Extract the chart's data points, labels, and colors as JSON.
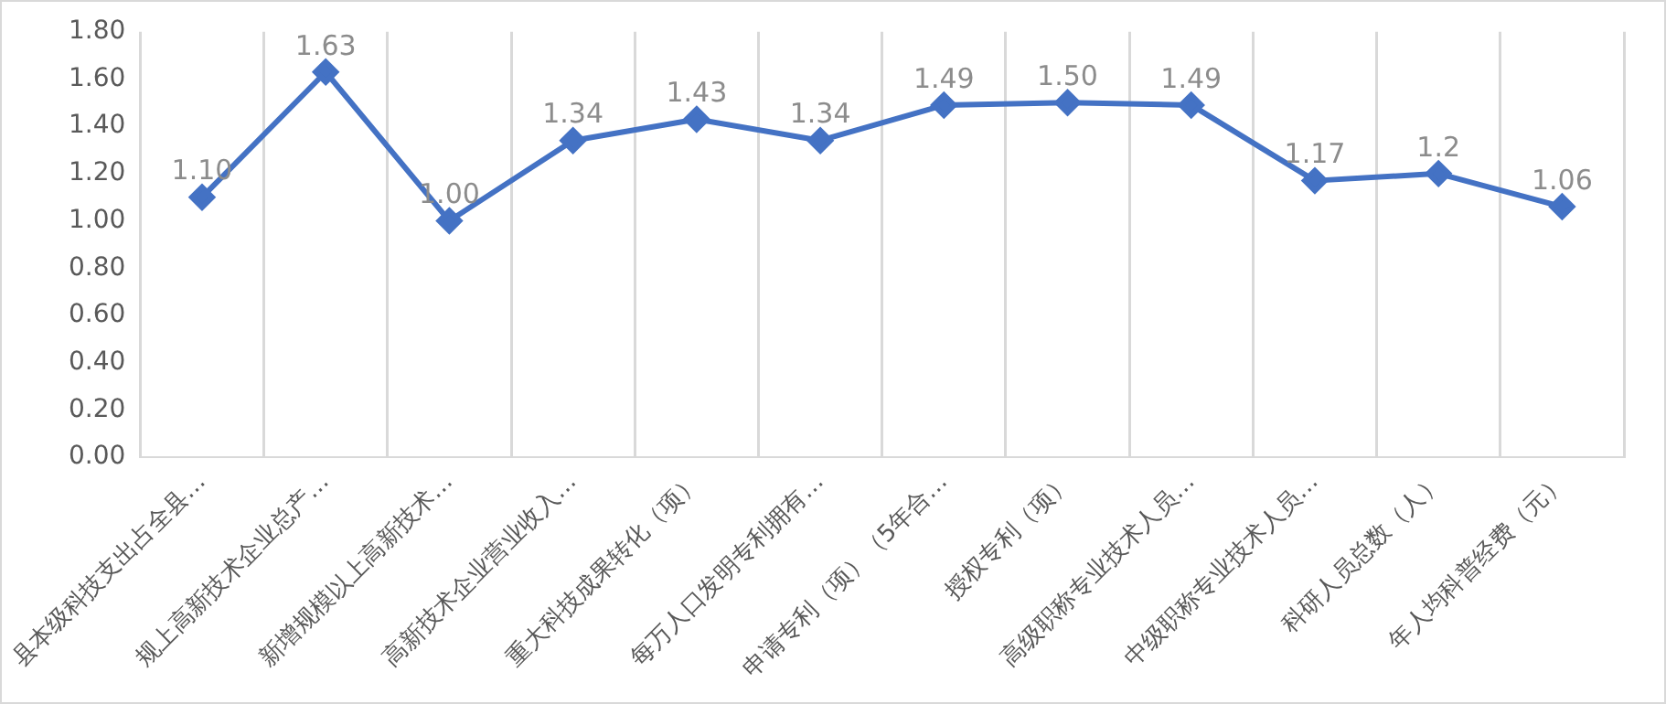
{
  "chart_data": {
    "type": "line",
    "categories": [
      "县本级科技支出占全县…",
      "规上高新技术企业总产…",
      "新增规模以上高新技术…",
      "高新技术企业营业收入…",
      "重大科技成果转化（项）",
      "每万人口发明专利拥有…",
      "申请专利（项）（5年合…",
      "授权专利（项）",
      "高级职称专业技术人员…",
      "中级职称专业技术人员…",
      "科研人员总数（人）",
      "年人均科普经费（元）"
    ],
    "series": [
      {
        "color": "#4472c4",
        "values": [
          1.1,
          1.63,
          1.0,
          1.34,
          1.43,
          1.34,
          1.49,
          1.5,
          1.49,
          1.17,
          1.2,
          1.06
        ],
        "value_labels": [
          "1.10",
          "1.63",
          "1.00",
          "1.34",
          "1.43",
          "1.34",
          "1.49",
          "1.50",
          "1.49",
          "1.17",
          "1.2",
          "1.06"
        ]
      }
    ],
    "ylim": [
      0,
      1.8
    ],
    "yticks": [
      {
        "value": 0,
        "label": "0.00"
      },
      {
        "value": 0.2,
        "label": "0.20"
      },
      {
        "value": 0.4,
        "label": "0.40"
      },
      {
        "value": 0.6,
        "label": "0.60"
      },
      {
        "value": 0.8,
        "label": "0.80"
      },
      {
        "value": 1,
        "label": "1.00"
      },
      {
        "value": 1.2,
        "label": "1.20"
      },
      {
        "value": 1.4,
        "label": "1.40"
      },
      {
        "value": 1.6,
        "label": "1.60"
      },
      {
        "value": 1.8,
        "label": "1.80"
      }
    ],
    "grid": "x",
    "legend": false,
    "marker": "diamond",
    "line_style": "solid"
  }
}
